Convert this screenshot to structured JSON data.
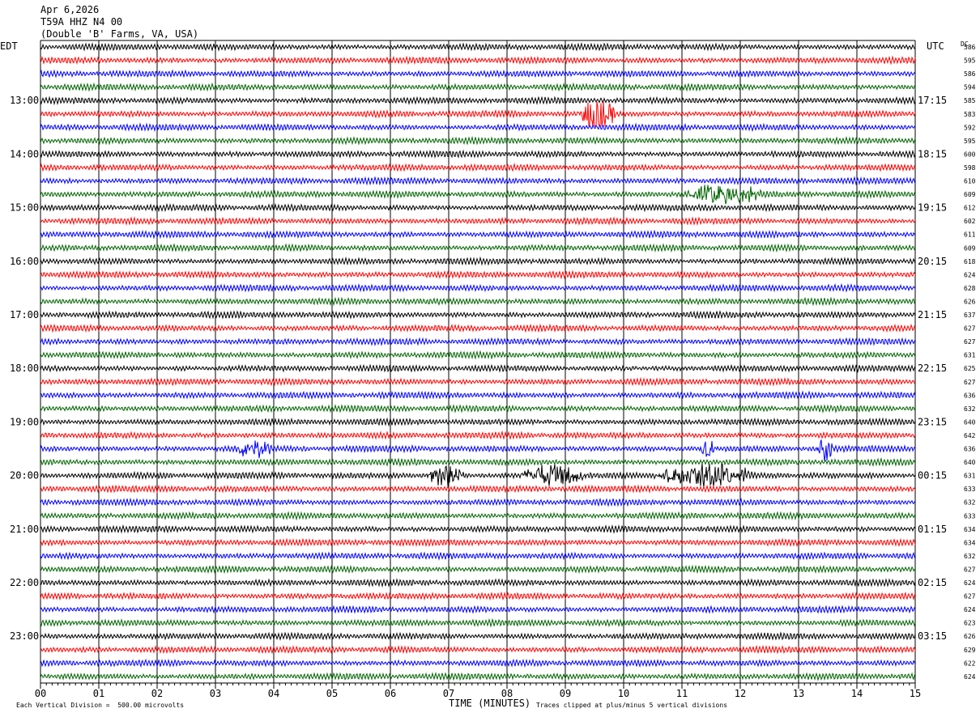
{
  "header": {
    "date": "Apr 6,2026",
    "station": "T59A HHZ N4 00",
    "location": "(Double 'B' Farms, VA, USA)"
  },
  "left_zone_label": "EDT",
  "right_zone_label": "UTC",
  "dc_label": "DC",
  "footer": {
    "scale_note": "Each Vertical Division =  500.00 microvolts",
    "axis_title": "TIME (MINUTES)",
    "clip_note": "Traces clipped at plus/minus 5 vertical divisions"
  },
  "chart_data": {
    "type": "line",
    "title": "",
    "xlabel": "TIME (MINUTES)",
    "xlim": [
      0,
      15
    ],
    "x_ticks": [
      "00",
      "01",
      "02",
      "03",
      "04",
      "05",
      "06",
      "07",
      "08",
      "09",
      "10",
      "11",
      "12",
      "13",
      "14",
      "15"
    ],
    "trace_colors": [
      "#000000",
      "#ff0000",
      "#0000ff",
      "#006400"
    ],
    "left_hour_labels": [
      {
        "trace": 4,
        "label": "13:00"
      },
      {
        "trace": 8,
        "label": "14:00"
      },
      {
        "trace": 12,
        "label": "15:00"
      },
      {
        "trace": 16,
        "label": "16:00"
      },
      {
        "trace": 20,
        "label": "17:00"
      },
      {
        "trace": 24,
        "label": "18:00"
      },
      {
        "trace": 28,
        "label": "19:00"
      },
      {
        "trace": 32,
        "label": "20:00"
      },
      {
        "trace": 36,
        "label": "21:00"
      },
      {
        "trace": 40,
        "label": "22:00"
      },
      {
        "trace": 44,
        "label": "23:00"
      }
    ],
    "right_hour_labels": [
      {
        "trace": 4,
        "label": "17:15"
      },
      {
        "trace": 8,
        "label": "18:15"
      },
      {
        "trace": 12,
        "label": "19:15"
      },
      {
        "trace": 16,
        "label": "20:15"
      },
      {
        "trace": 20,
        "label": "21:15"
      },
      {
        "trace": 24,
        "label": "22:15"
      },
      {
        "trace": 28,
        "label": "23:15"
      },
      {
        "trace": 32,
        "label": "00:15"
      },
      {
        "trace": 36,
        "label": "01:15"
      },
      {
        "trace": 40,
        "label": "02:15"
      },
      {
        "trace": 44,
        "label": "03:15"
      }
    ],
    "dc_offsets": [
      "586",
      "595",
      "586",
      "594",
      "585",
      "583",
      "592",
      "595",
      "600",
      "598",
      "610",
      "609",
      "612",
      "602",
      "611",
      "609",
      "618",
      "624",
      "628",
      "626",
      "637",
      "627",
      "627",
      "631",
      "625",
      "627",
      "636",
      "632",
      "640",
      "642",
      "636",
      "640",
      "631",
      "633",
      "632",
      "633",
      "634",
      "634",
      "632",
      "627",
      "624",
      "627",
      "624",
      "623",
      "626",
      "629",
      "622",
      "624"
    ],
    "events": [
      {
        "trace": 5,
        "start_min": 9.2,
        "end_min": 9.9,
        "amp": 2.6
      },
      {
        "trace": 11,
        "start_min": 11.0,
        "end_min": 12.4,
        "amp": 1.4
      },
      {
        "trace": 30,
        "start_min": 3.3,
        "end_min": 4.0,
        "amp": 1.3
      },
      {
        "trace": 30,
        "start_min": 11.3,
        "end_min": 11.6,
        "amp": 1.4
      },
      {
        "trace": 30,
        "start_min": 13.3,
        "end_min": 13.6,
        "amp": 2.4
      },
      {
        "trace": 32,
        "start_min": 6.6,
        "end_min": 7.3,
        "amp": 1.6
      },
      {
        "trace": 32,
        "start_min": 8.2,
        "end_min": 9.4,
        "amp": 1.6
      },
      {
        "trace": 32,
        "start_min": 10.5,
        "end_min": 12.3,
        "amp": 1.7
      }
    ]
  }
}
